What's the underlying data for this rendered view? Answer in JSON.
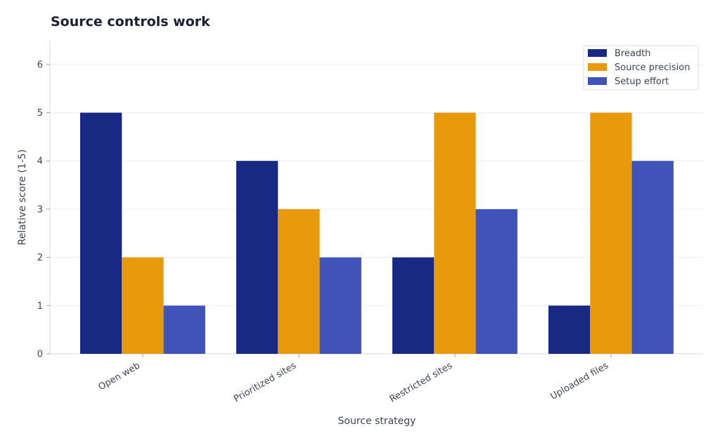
{
  "chart_data": {
    "type": "bar",
    "title": "Source controls work",
    "xlabel": "Source strategy",
    "ylabel": "Relative score (1-5)",
    "categories": [
      "Open web",
      "Prioritized sites",
      "Restricted sites",
      "Uploaded files"
    ],
    "series": [
      {
        "name": "Breadth",
        "values": [
          5,
          4,
          2,
          1
        ],
        "color": "#172983"
      },
      {
        "name": "Source precision",
        "values": [
          2,
          3,
          5,
          5
        ],
        "color": "#e89a0c"
      },
      {
        "name": "Setup effort",
        "values": [
          1,
          2,
          3,
          4
        ],
        "color": "#3f53b8"
      }
    ],
    "yticks": [
      "0",
      "1",
      "2",
      "3",
      "4",
      "5",
      "6"
    ],
    "ylim": [
      0,
      6.5
    ],
    "grid": true,
    "legend": "top-right"
  }
}
